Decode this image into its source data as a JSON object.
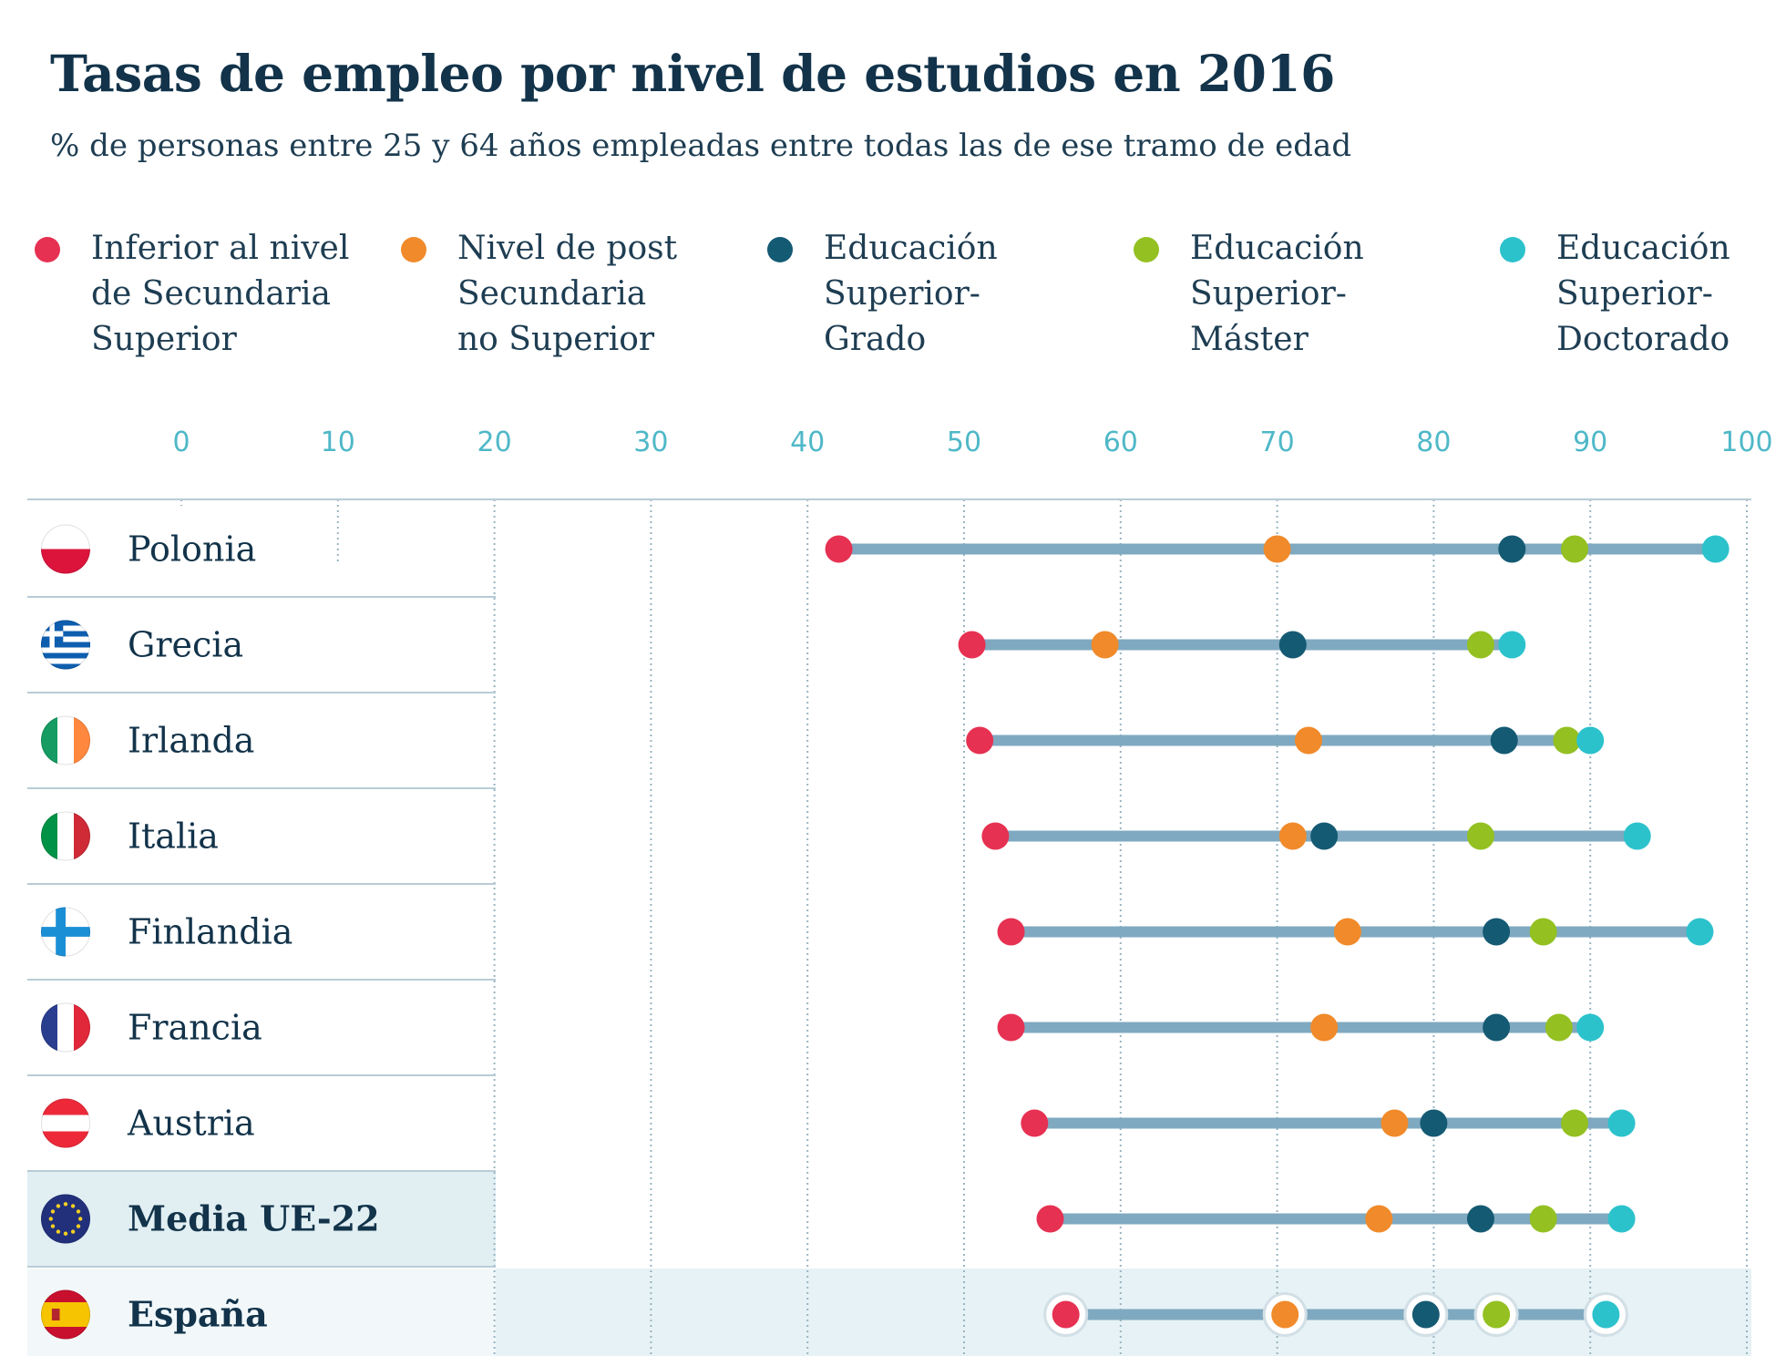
{
  "header": {
    "title": "Tasas de empleo por nivel de estudios en 2016",
    "subtitle": "% de personas entre 25 y 64 años empleadas entre todas las de ese tramo de edad"
  },
  "legend": [
    {
      "label": "Inferior al nivel\nde Secundaria\nSuperior",
      "color": "#e63152"
    },
    {
      "label": "Nivel de post\nSecundaria\nno Superior",
      "color": "#f08a2a"
    },
    {
      "label": "Educación\nSuperior-\nGrado",
      "color": "#155a73"
    },
    {
      "label": "Educación\nSuperior-\nMáster",
      "color": "#94c022"
    },
    {
      "label": "Educación\nSuperior-\nDoctorado",
      "color": "#2cc2cc"
    }
  ],
  "chart_data": {
    "type": "dot-range",
    "xlim": [
      0,
      100
    ],
    "x_ticks": [
      "0",
      "10",
      "20",
      "30",
      "40",
      "50",
      "60",
      "70",
      "80",
      "90",
      "100"
    ],
    "series_names": [
      "Inferior al nivel de Secundaria Superior",
      "Nivel de post Secundaria no Superior",
      "Educación Superior-Grado",
      "Educación Superior-Máster",
      "Educación Superior-Doctorado"
    ],
    "colors": [
      "#e63152",
      "#f08a2a",
      "#155a73",
      "#94c022",
      "#2cc2cc"
    ],
    "rows": [
      {
        "country": "Polonia",
        "flag": "flag-poland-icon",
        "values": [
          42,
          70,
          85,
          89,
          98
        ]
      },
      {
        "country": "Grecia",
        "flag": "flag-greece-icon",
        "values": [
          50.5,
          59,
          71,
          83,
          85
        ]
      },
      {
        "country": "Irlanda",
        "flag": "flag-ireland-icon",
        "values": [
          51,
          72,
          84.5,
          88.5,
          90
        ]
      },
      {
        "country": "Italia",
        "flag": "flag-italy-icon",
        "values": [
          52,
          71,
          73,
          83,
          93
        ]
      },
      {
        "country": "Finlandia",
        "flag": "flag-finland-icon",
        "values": [
          53,
          74.5,
          84,
          87,
          97
        ]
      },
      {
        "country": "Francia",
        "flag": "flag-france-icon",
        "values": [
          53,
          73,
          84,
          88,
          90
        ]
      },
      {
        "country": "Austria",
        "flag": "flag-austria-icon",
        "values": [
          54.5,
          77.5,
          80,
          89,
          92
        ]
      },
      {
        "country": "Media UE-22",
        "flag": "flag-eu-icon",
        "values": [
          55.5,
          76.5,
          83,
          87,
          92
        ],
        "highlight": "eu"
      },
      {
        "country": "España",
        "flag": "flag-spain-icon",
        "values": [
          56.5,
          70.5,
          79.5,
          84,
          91
        ],
        "highlight": "spain"
      }
    ]
  }
}
